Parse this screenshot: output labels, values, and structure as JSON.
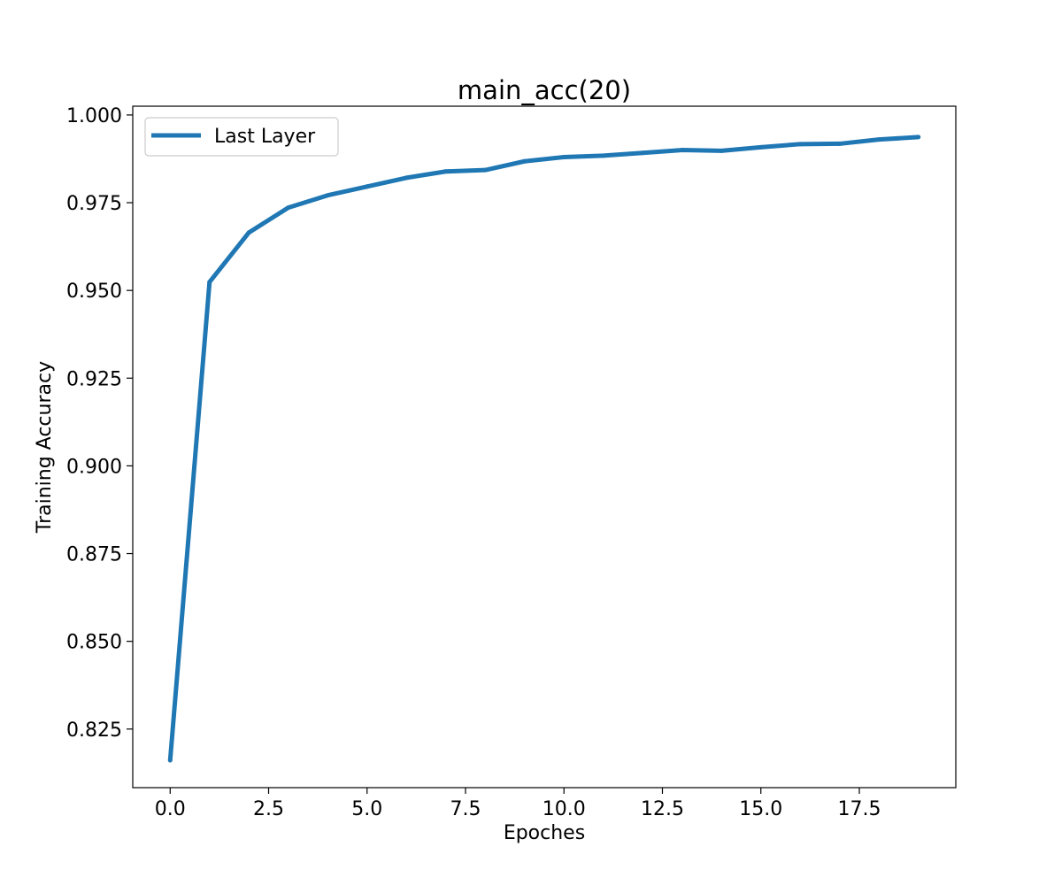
{
  "chart_data": {
    "type": "line",
    "title": "main_acc(20)",
    "xlabel": "Epoches",
    "ylabel": "Training Accuracy",
    "xlim": [
      -0.95,
      19.95
    ],
    "ylim": [
      0.8083,
      1.0025
    ],
    "xticks": [
      "0.0",
      "2.5",
      "5.0",
      "7.5",
      "10.0",
      "12.5",
      "15.0",
      "17.5"
    ],
    "yticks": [
      "0.825",
      "0.850",
      "0.875",
      "0.900",
      "0.925",
      "0.950",
      "0.975",
      "1.000"
    ],
    "grid": false,
    "legend_position": "top-left",
    "series": [
      {
        "name": "Last Layer",
        "color": "#1f77b4",
        "x": [
          0,
          1,
          2,
          3,
          4,
          5,
          6,
          7,
          8,
          9,
          10,
          11,
          12,
          13,
          14,
          15,
          16,
          17,
          18,
          19
        ],
        "y": [
          0.8161,
          0.9524,
          0.9665,
          0.9736,
          0.9771,
          0.9796,
          0.9821,
          0.9839,
          0.9843,
          0.9868,
          0.988,
          0.9884,
          0.9892,
          0.99,
          0.9898,
          0.9908,
          0.9917,
          0.9918,
          0.993,
          0.9937
        ]
      }
    ]
  }
}
